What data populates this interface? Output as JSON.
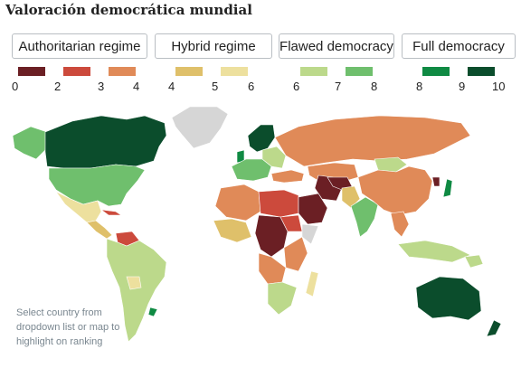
{
  "title": "Valoración democrática mundial",
  "legend": {
    "categories": [
      {
        "label": "Authoritarian regime"
      },
      {
        "label": "Hybrid regime"
      },
      {
        "label": "Flawed democracy"
      },
      {
        "label": "Full democracy"
      }
    ],
    "ticks": [
      "0",
      "2",
      "3",
      "4",
      "4",
      "5",
      "6",
      "6",
      "7",
      "8",
      "8",
      "9",
      "10"
    ],
    "colors": {
      "c0_2": "#6b1f24",
      "c2_3": "#cc4a3c",
      "c3_4": "#e08a58",
      "c4_5": "#dfc06a",
      "c5_6": "#ede09e",
      "c6_7": "#bcd98b",
      "c7_8": "#6fbf6d",
      "c8_9": "#0f8a43",
      "c9_10": "#0b4d2c",
      "nodata": "#d6d6d6"
    }
  },
  "note": "Select country from dropdown list or map to highlight on ranking"
}
